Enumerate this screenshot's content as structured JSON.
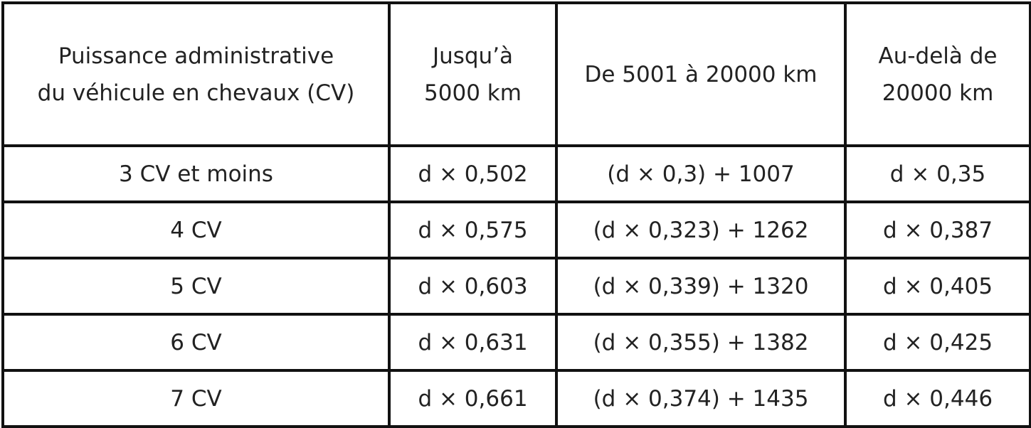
{
  "header": {
    "col1_line1": "Puissance administrative",
    "col1_line2": "du véhicule en chevaux (CV)",
    "col2_line1": "Jusqu’à",
    "col2_line2": "5000 km",
    "col3": "De 5001 à 20000 km",
    "col4_line1": "Au-delà de",
    "col4_line2": "20000 km"
  },
  "rows": [
    {
      "cv": "3 CV et moins",
      "upto5000": "d × 0,502",
      "mid": "(d × 0,3) + 1007",
      "over20000": "d × 0,35"
    },
    {
      "cv": "4 CV",
      "upto5000": "d × 0,575",
      "mid": "(d × 0,323) + 1262",
      "over20000": "d × 0,387"
    },
    {
      "cv": "5 CV",
      "upto5000": "d × 0,603",
      "mid": "(d × 0,339) + 1320",
      "over20000": "d × 0,405"
    },
    {
      "cv": "6 CV",
      "upto5000": "d × 0,631",
      "mid": "(d × 0,355) + 1382",
      "over20000": "d × 0,425"
    },
    {
      "cv": "7 CV",
      "upto5000": "d × 0,661",
      "mid": "(d × 0,374) + 1435",
      "over20000": "d × 0,446"
    }
  ]
}
